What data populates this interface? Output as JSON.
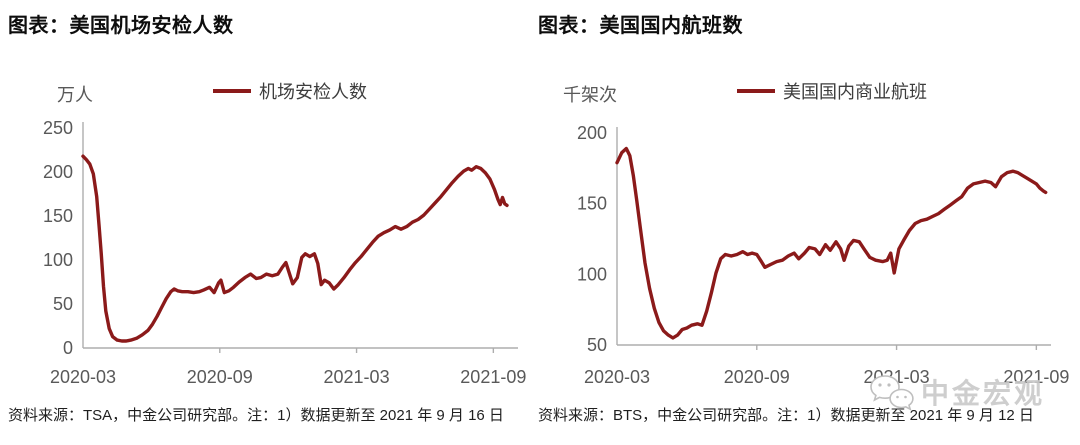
{
  "watermark": {
    "label": "中金宏观",
    "icon": "wechat-icon"
  },
  "style": {
    "line_color": "#8B1A1A",
    "axis_color": "#ADADAD",
    "tick_label_color": "#595959",
    "background": "#ffffff",
    "watermark_color": "#c9c9c9"
  },
  "chart_data": [
    {
      "type": "line",
      "title": "图表：美国机场安检人数",
      "ylabel": "万人",
      "source": "资料来源：TSA，中金公司研究部。注：1）数据更新至 2021 年 9 月 16 日",
      "legend": [
        {
          "label": "机场安检人数",
          "color": "#8B1A1A"
        }
      ],
      "legend_position": "top",
      "grid": false,
      "ylim": [
        0,
        250
      ],
      "yticks": [
        0,
        50,
        100,
        150,
        200,
        250
      ],
      "x_unit": "months since 2020-03",
      "xmax": 18.95,
      "xticks": [
        {
          "v": 0,
          "label": "2020-03"
        },
        {
          "v": 6,
          "label": "2020-09"
        },
        {
          "v": 12,
          "label": "2021-03"
        },
        {
          "v": 18,
          "label": "2021-09"
        }
      ],
      "series": [
        {
          "name": "机场安检人数",
          "color": "#8B1A1A",
          "points": [
            [
              0,
              218
            ],
            [
              0.15,
              214
            ],
            [
              0.3,
              209
            ],
            [
              0.45,
              198
            ],
            [
              0.6,
              172
            ],
            [
              0.7,
              140
            ],
            [
              0.8,
              108
            ],
            [
              0.9,
              70
            ],
            [
              1.0,
              42
            ],
            [
              1.15,
              22
            ],
            [
              1.3,
              13
            ],
            [
              1.5,
              9
            ],
            [
              1.7,
              8
            ],
            [
              1.9,
              8
            ],
            [
              2.1,
              9
            ],
            [
              2.35,
              11
            ],
            [
              2.6,
              15
            ],
            [
              2.85,
              20
            ],
            [
              3.05,
              27
            ],
            [
              3.25,
              36
            ],
            [
              3.45,
              46
            ],
            [
              3.65,
              56
            ],
            [
              3.85,
              64
            ],
            [
              4.0,
              67
            ],
            [
              4.15,
              65
            ],
            [
              4.35,
              64
            ],
            [
              4.6,
              64
            ],
            [
              4.85,
              63
            ],
            [
              5.1,
              64
            ],
            [
              5.3,
              66
            ],
            [
              5.55,
              69
            ],
            [
              5.75,
              63
            ],
            [
              5.95,
              74
            ],
            [
              6.05,
              77
            ],
            [
              6.2,
              63
            ],
            [
              6.4,
              65
            ],
            [
              6.6,
              69
            ],
            [
              6.85,
              75
            ],
            [
              7.1,
              80
            ],
            [
              7.35,
              84
            ],
            [
              7.6,
              79
            ],
            [
              7.8,
              80
            ],
            [
              8.05,
              84
            ],
            [
              8.3,
              82
            ],
            [
              8.55,
              84
            ],
            [
              8.75,
              92
            ],
            [
              8.9,
              97
            ],
            [
              9.05,
              85
            ],
            [
              9.2,
              73
            ],
            [
              9.4,
              80
            ],
            [
              9.6,
              103
            ],
            [
              9.75,
              107
            ],
            [
              9.95,
              104
            ],
            [
              10.15,
              107
            ],
            [
              10.3,
              96
            ],
            [
              10.45,
              72
            ],
            [
              10.6,
              77
            ],
            [
              10.8,
              74
            ],
            [
              11.0,
              67
            ],
            [
              11.2,
              72
            ],
            [
              11.45,
              80
            ],
            [
              11.7,
              89
            ],
            [
              11.95,
              97
            ],
            [
              12.2,
              104
            ],
            [
              12.45,
              112
            ],
            [
              12.7,
              120
            ],
            [
              12.95,
              127
            ],
            [
              13.2,
              131
            ],
            [
              13.45,
              134
            ],
            [
              13.7,
              138
            ],
            [
              13.95,
              135
            ],
            [
              14.2,
              138
            ],
            [
              14.45,
              143
            ],
            [
              14.7,
              146
            ],
            [
              14.95,
              151
            ],
            [
              15.2,
              158
            ],
            [
              15.45,
              165
            ],
            [
              15.7,
              172
            ],
            [
              15.95,
              180
            ],
            [
              16.2,
              188
            ],
            [
              16.45,
              195
            ],
            [
              16.7,
              201
            ],
            [
              16.9,
              204
            ],
            [
              17.05,
              202
            ],
            [
              17.25,
              206
            ],
            [
              17.45,
              204
            ],
            [
              17.65,
              199
            ],
            [
              17.85,
              192
            ],
            [
              18.05,
              180
            ],
            [
              18.2,
              169
            ],
            [
              18.3,
              163
            ],
            [
              18.4,
              171
            ],
            [
              18.5,
              164
            ],
            [
              18.6,
              162
            ]
          ]
        }
      ]
    },
    {
      "type": "line",
      "title": "图表：美国国内航班数",
      "ylabel": "千架次",
      "source": "资料来源：BTS，中金公司研究部。注：1）数据更新至 2021 年 9 月 12 日",
      "legend": [
        {
          "label": "美国国内商业航班",
          "color": "#8B1A1A"
        }
      ],
      "legend_position": "top",
      "grid": false,
      "ylim": [
        50,
        200
      ],
      "yticks": [
        50,
        100,
        150,
        200
      ],
      "x_unit": "months since 2020-03",
      "xmax": 18.5,
      "xticks": [
        {
          "v": 0,
          "label": "2020-03"
        },
        {
          "v": 6,
          "label": "2020-09"
        },
        {
          "v": 12,
          "label": "2021-03"
        },
        {
          "v": 18,
          "label": "2021-09"
        }
      ],
      "series": [
        {
          "name": "美国国内商业航班",
          "color": "#8B1A1A",
          "points": [
            [
              0,
              179
            ],
            [
              0.2,
              186
            ],
            [
              0.4,
              189
            ],
            [
              0.55,
              184
            ],
            [
              0.7,
              170
            ],
            [
              0.85,
              152
            ],
            [
              1.0,
              133
            ],
            [
              1.2,
              108
            ],
            [
              1.4,
              90
            ],
            [
              1.6,
              76
            ],
            [
              1.8,
              66
            ],
            [
              2.0,
              60
            ],
            [
              2.2,
              57
            ],
            [
              2.4,
              55
            ],
            [
              2.6,
              57
            ],
            [
              2.8,
              61
            ],
            [
              3.0,
              62
            ],
            [
              3.2,
              64
            ],
            [
              3.45,
              65
            ],
            [
              3.65,
              64
            ],
            [
              3.85,
              74
            ],
            [
              4.05,
              87
            ],
            [
              4.25,
              101
            ],
            [
              4.45,
              111
            ],
            [
              4.65,
              114
            ],
            [
              4.9,
              113
            ],
            [
              5.15,
              114
            ],
            [
              5.4,
              116
            ],
            [
              5.6,
              114
            ],
            [
              5.8,
              115
            ],
            [
              6.0,
              114
            ],
            [
              6.2,
              109
            ],
            [
              6.35,
              105
            ],
            [
              6.6,
              107
            ],
            [
              6.85,
              109
            ],
            [
              7.1,
              110
            ],
            [
              7.35,
              113
            ],
            [
              7.6,
              115
            ],
            [
              7.8,
              111
            ],
            [
              8.05,
              115
            ],
            [
              8.25,
              119
            ],
            [
              8.5,
              118
            ],
            [
              8.7,
              114
            ],
            [
              8.95,
              121
            ],
            [
              9.15,
              117
            ],
            [
              9.4,
              123
            ],
            [
              9.6,
              118
            ],
            [
              9.75,
              110
            ],
            [
              9.95,
              120
            ],
            [
              10.15,
              124
            ],
            [
              10.4,
              123
            ],
            [
              10.6,
              118
            ],
            [
              10.85,
              112
            ],
            [
              11.1,
              110
            ],
            [
              11.4,
              109
            ],
            [
              11.6,
              110
            ],
            [
              11.75,
              115
            ],
            [
              11.9,
              101
            ],
            [
              12.1,
              118
            ],
            [
              12.3,
              124
            ],
            [
              12.55,
              131
            ],
            [
              12.8,
              136
            ],
            [
              13.05,
              138
            ],
            [
              13.3,
              139
            ],
            [
              13.55,
              141
            ],
            [
              13.8,
              143
            ],
            [
              14.05,
              146
            ],
            [
              14.3,
              149
            ],
            [
              14.55,
              152
            ],
            [
              14.8,
              155
            ],
            [
              15.05,
              161
            ],
            [
              15.3,
              164
            ],
            [
              15.55,
              165
            ],
            [
              15.8,
              166
            ],
            [
              16.05,
              165
            ],
            [
              16.25,
              162
            ],
            [
              16.5,
              169
            ],
            [
              16.75,
              172
            ],
            [
              17.0,
              173
            ],
            [
              17.2,
              172
            ],
            [
              17.4,
              170
            ],
            [
              17.6,
              168
            ],
            [
              17.8,
              166
            ],
            [
              18.0,
              164
            ],
            [
              18.15,
              161
            ],
            [
              18.3,
              159
            ],
            [
              18.4,
              158
            ]
          ]
        }
      ]
    }
  ]
}
